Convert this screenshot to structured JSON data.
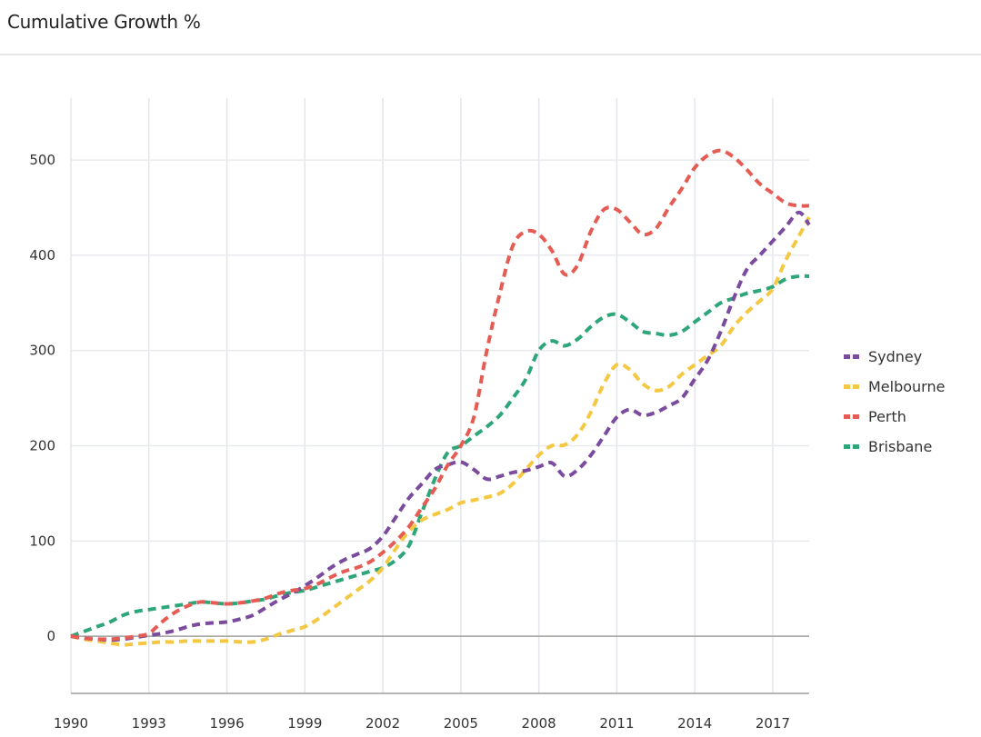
{
  "header": {
    "title": "Cumulative Growth %"
  },
  "chart_data": {
    "type": "line",
    "title": "Cumulative Growth %",
    "xlabel": "",
    "ylabel": "",
    "xlim": [
      1990,
      2018.4
    ],
    "ylim": [
      -60,
      565
    ],
    "grid": true,
    "legend_position": "right",
    "line_style": "dashed",
    "x_ticks": [
      "1990",
      "1993",
      "1996",
      "1999",
      "2002",
      "2005",
      "2008",
      "2011",
      "2014",
      "2017"
    ],
    "y_ticks": [
      "0",
      "100",
      "200",
      "300",
      "400",
      "500"
    ],
    "x": [
      1990,
      1990.5,
      1991,
      1991.5,
      1992,
      1992.5,
      1993,
      1993.5,
      1994,
      1994.5,
      1995,
      1995.5,
      1996,
      1996.5,
      1997,
      1997.5,
      1998,
      1998.5,
      1999,
      1999.5,
      2000,
      2000.5,
      2001,
      2001.5,
      2002,
      2002.5,
      2003,
      2003.5,
      2004,
      2004.5,
      2005,
      2005.5,
      2006,
      2006.5,
      2007,
      2007.5,
      2008,
      2008.5,
      2009,
      2009.5,
      2010,
      2010.5,
      2011,
      2011.5,
      2012,
      2012.5,
      2013,
      2013.5,
      2014,
      2014.5,
      2015,
      2015.5,
      2016,
      2016.5,
      2017,
      2017.5,
      2018,
      2018.4
    ],
    "series": [
      {
        "name": "Sydney",
        "color": "#7b4b9e",
        "values": [
          0,
          -2,
          -3,
          -4,
          -3,
          -1,
          1,
          3,
          6,
          10,
          13,
          14,
          15,
          18,
          22,
          30,
          38,
          45,
          53,
          62,
          72,
          80,
          86,
          92,
          105,
          125,
          145,
          160,
          175,
          180,
          183,
          175,
          165,
          168,
          172,
          174,
          178,
          182,
          168,
          175,
          190,
          210,
          230,
          238,
          232,
          235,
          242,
          250,
          270,
          290,
          320,
          355,
          385,
          400,
          415,
          430,
          445,
          432
        ]
      },
      {
        "name": "Melbourne",
        "color": "#f4c842",
        "values": [
          0,
          -3,
          -5,
          -7,
          -9,
          -8,
          -7,
          -6,
          -6,
          -5,
          -5,
          -5,
          -5,
          -6,
          -6,
          -3,
          2,
          6,
          10,
          18,
          28,
          38,
          48,
          58,
          72,
          92,
          110,
          122,
          128,
          133,
          140,
          143,
          146,
          150,
          160,
          175,
          190,
          200,
          201,
          212,
          235,
          265,
          285,
          280,
          265,
          258,
          262,
          275,
          285,
          295,
          305,
          325,
          340,
          352,
          365,
          395,
          420,
          440
        ]
      },
      {
        "name": "Perth",
        "color": "#e55c55",
        "values": [
          0,
          -2,
          -3,
          -3,
          -2,
          0,
          3,
          15,
          25,
          32,
          36,
          35,
          34,
          35,
          37,
          40,
          45,
          48,
          50,
          55,
          62,
          68,
          72,
          78,
          88,
          100,
          115,
          135,
          155,
          180,
          200,
          230,
          300,
          360,
          410,
          425,
          422,
          405,
          380,
          390,
          425,
          448,
          448,
          435,
          422,
          428,
          450,
          470,
          492,
          505,
          510,
          503,
          490,
          475,
          465,
          455,
          452,
          452
        ]
      },
      {
        "name": "Brisbane",
        "color": "#2fa67a",
        "values": [
          0,
          5,
          10,
          15,
          22,
          26,
          28,
          30,
          32,
          34,
          36,
          35,
          34,
          35,
          37,
          39,
          43,
          46,
          48,
          52,
          56,
          60,
          64,
          68,
          72,
          80,
          95,
          130,
          165,
          193,
          200,
          210,
          220,
          232,
          250,
          270,
          300,
          310,
          305,
          312,
          325,
          335,
          338,
          330,
          320,
          318,
          316,
          320,
          330,
          340,
          350,
          355,
          360,
          363,
          367,
          375,
          378,
          378
        ]
      }
    ]
  }
}
